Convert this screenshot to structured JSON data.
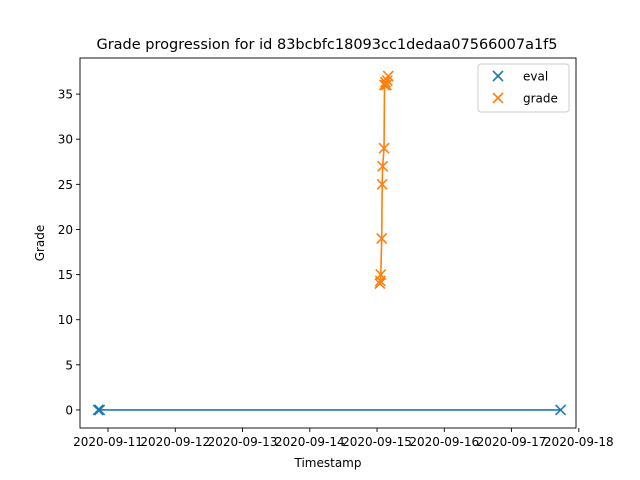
{
  "chart_data": {
    "type": "scatter",
    "title": "Grade progression for id 83bcbfc18093cc1dedaa07566007a1f5",
    "xlabel": "Timestamp",
    "ylabel": "Grade",
    "x_axis_type": "date",
    "xlim": [
      "2020-09-10 14:00",
      "2020-09-17 23:00"
    ],
    "ylim": [
      -2,
      39
    ],
    "x_ticks": [
      "2020-09-11",
      "2020-09-12",
      "2020-09-13",
      "2020-09-14",
      "2020-09-15",
      "2020-09-16",
      "2020-09-17",
      "2020-09-18"
    ],
    "y_ticks": [
      0,
      5,
      10,
      15,
      20,
      25,
      30,
      35
    ],
    "grid": false,
    "legend_position": "top-right",
    "markers": "x",
    "series": [
      {
        "name": "eval",
        "color": "#1f77b4",
        "connected": true,
        "points": [
          {
            "x": "2020-09-10 20:30",
            "y": 0
          },
          {
            "x": "2020-09-10 21:00",
            "y": 0
          },
          {
            "x": "2020-09-17 17:30",
            "y": 0
          }
        ]
      },
      {
        "name": "grade",
        "color": "#ff7f0e",
        "connected": true,
        "points": [
          {
            "x": "2020-09-15 01:00",
            "y": 14
          },
          {
            "x": "2020-09-15 01:10",
            "y": 14.3
          },
          {
            "x": "2020-09-15 01:20",
            "y": 15
          },
          {
            "x": "2020-09-15 01:40",
            "y": 19
          },
          {
            "x": "2020-09-15 01:50",
            "y": 25
          },
          {
            "x": "2020-09-15 02:00",
            "y": 27
          },
          {
            "x": "2020-09-15 02:30",
            "y": 29
          },
          {
            "x": "2020-09-15 02:40",
            "y": 36
          },
          {
            "x": "2020-09-15 03:00",
            "y": 36.3
          },
          {
            "x": "2020-09-15 03:20",
            "y": 36
          },
          {
            "x": "2020-09-15 03:40",
            "y": 36.5
          },
          {
            "x": "2020-09-15 04:00",
            "y": 37
          }
        ]
      }
    ]
  }
}
